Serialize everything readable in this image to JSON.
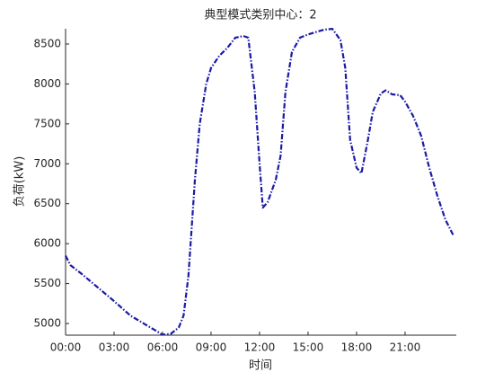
{
  "chart_data": {
    "type": "line",
    "title": "典型模式类别中心：2",
    "xlabel": "时间",
    "ylabel": "负荷(kW)",
    "x": [
      0,
      0.3,
      1,
      2,
      3,
      4,
      5,
      5.5,
      6,
      6.5,
      7,
      7.3,
      7.6,
      8,
      8.3,
      8.7,
      9,
      9.5,
      10,
      10.5,
      11,
      11.3,
      11.7,
      12,
      12.2,
      12.5,
      13,
      13.3,
      13.6,
      14,
      14.5,
      15,
      15.5,
      16,
      16.5,
      17,
      17.3,
      17.6,
      18,
      18.3,
      18.7,
      19,
      19.5,
      19.8,
      20.2,
      20.7,
      21,
      21.5,
      22,
      22.5,
      23,
      23.5,
      24
    ],
    "series": [
      {
        "name": "典型模式类别中心",
        "color": "#1a1aa6",
        "values": [
          5850,
          5730,
          5620,
          5450,
          5280,
          5100,
          4980,
          4920,
          4860,
          4870,
          4950,
          5100,
          5600,
          6800,
          7500,
          8000,
          8200,
          8350,
          8450,
          8580,
          8600,
          8580,
          7900,
          7000,
          6450,
          6520,
          6800,
          7100,
          7900,
          8400,
          8580,
          8620,
          8650,
          8680,
          8690,
          8550,
          8200,
          7300,
          6950,
          6880,
          7300,
          7650,
          7880,
          7920,
          7870,
          7860,
          7780,
          7600,
          7350,
          6950,
          6600,
          6300,
          6100
        ]
      }
    ],
    "xlim": [
      0,
      24.17
    ],
    "ylim": [
      4854,
      8691
    ],
    "xticks": [
      {
        "value": 0,
        "label": "00:00"
      },
      {
        "value": 3,
        "label": "03:00"
      },
      {
        "value": 6,
        "label": "06:00"
      },
      {
        "value": 9,
        "label": "09:00"
      },
      {
        "value": 12,
        "label": "12:00"
      },
      {
        "value": 15,
        "label": "15:00"
      },
      {
        "value": 18,
        "label": "18:00"
      },
      {
        "value": 21,
        "label": "21:00"
      }
    ],
    "yticks": [
      5000,
      5500,
      6000,
      6500,
      7000,
      7500,
      8000,
      8500
    ],
    "grid": false
  }
}
